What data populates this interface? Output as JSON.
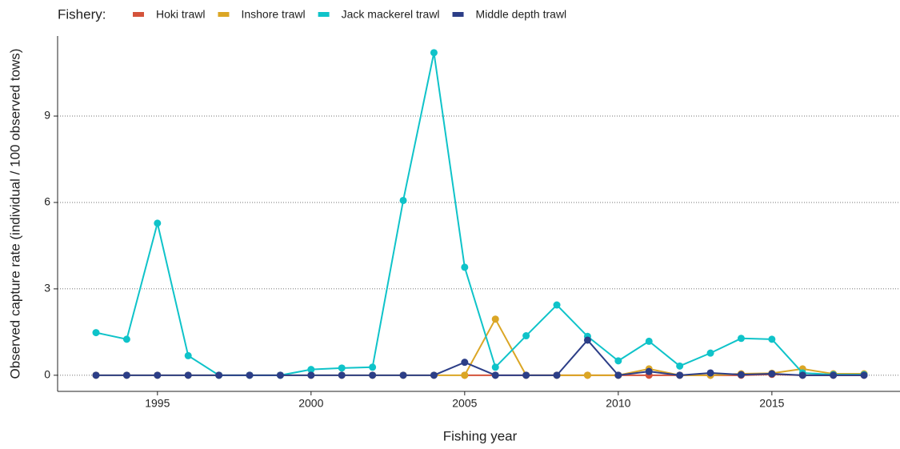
{
  "chart_data": {
    "type": "line",
    "legend_title": "Fishery:",
    "x_label": "Fishing year",
    "y_label": "Observed capture rate (individual / 100 observed tows)",
    "x": [
      1993,
      1994,
      1995,
      1996,
      1997,
      1998,
      1999,
      2000,
      2001,
      2002,
      2003,
      2004,
      2005,
      2006,
      2007,
      2008,
      2009,
      2010,
      2011,
      2012,
      2013,
      2014,
      2015,
      2016,
      2017,
      2018
    ],
    "series": [
      {
        "name": "Hoki trawl",
        "color": "#d4533b",
        "values": [
          null,
          null,
          null,
          null,
          null,
          null,
          null,
          null,
          null,
          null,
          null,
          null,
          0,
          0,
          0,
          0,
          0,
          0,
          0,
          0,
          0,
          0,
          0.03,
          0,
          0,
          0
        ]
      },
      {
        "name": "Inshore trawl",
        "color": "#dba625",
        "values": [
          0,
          0,
          0,
          0,
          0,
          0,
          0,
          0,
          0,
          0,
          0,
          0,
          0,
          1.95,
          0,
          0,
          0,
          0,
          0.22,
          0,
          0,
          0.05,
          0.07,
          0.22,
          0.05,
          0.05
        ]
      },
      {
        "name": "Jack mackerel trawl",
        "color": "#0fc3c9",
        "values": [
          1.48,
          1.25,
          5.28,
          0.68,
          0,
          0,
          0,
          0.2,
          0.25,
          0.28,
          6.07,
          11.2,
          3.75,
          0.28,
          1.37,
          2.44,
          1.35,
          0.5,
          1.18,
          0.32,
          0.77,
          1.28,
          1.25,
          0.08,
          0.02,
          0.02
        ]
      },
      {
        "name": "Middle depth trawl",
        "color": "#2c3e87",
        "values": [
          0,
          0,
          0,
          0,
          0,
          0,
          0,
          0,
          0,
          0,
          0,
          0,
          0.45,
          0,
          0,
          0,
          1.22,
          0,
          0.13,
          0,
          0.08,
          0.02,
          0.05,
          0,
          0,
          0
        ]
      }
    ],
    "xlim": [
      1991.75,
      2019.17
    ],
    "xticks": [
      1995,
      2000,
      2005,
      2010,
      2015
    ],
    "ylim": [
      -0.56,
      11.78
    ],
    "yticks": [
      0,
      3,
      6,
      9
    ],
    "grid": true,
    "legend": "top"
  }
}
